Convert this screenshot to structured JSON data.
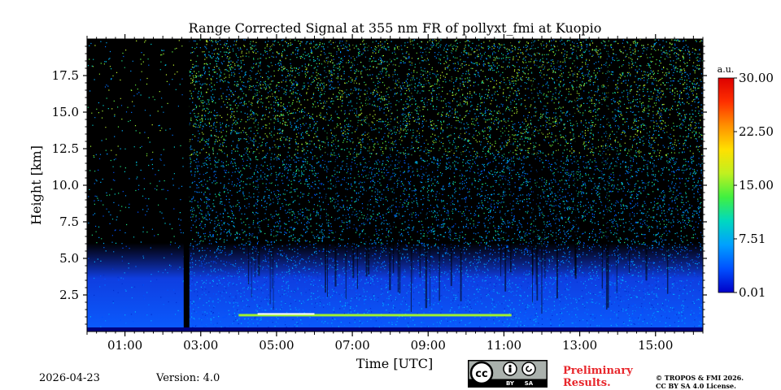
{
  "chart_data": {
    "type": "heatmap",
    "title": "Range Corrected Signal at 355 nm FR of pollyxt_fmi at Kuopio",
    "xlabel": "Time [UTC]",
    "ylabel": "Height [km]",
    "x_range_hours": [
      0.0,
      16.25
    ],
    "y_range_km": [
      0.0,
      20.0
    ],
    "xticks": [
      "01:00",
      "03:00",
      "05:00",
      "07:00",
      "09:00",
      "11:00",
      "13:00",
      "15:00"
    ],
    "xtick_values_hours": [
      1,
      3,
      5,
      7,
      9,
      11,
      13,
      15
    ],
    "yticks": [
      "2.5",
      "5.0",
      "7.5",
      "10.0",
      "12.5",
      "15.0",
      "17.5"
    ],
    "ytick_values_km": [
      2.5,
      5.0,
      7.5,
      10.0,
      12.5,
      15.0,
      17.5
    ],
    "colorbar": {
      "unit_label": "a.u.",
      "range": [
        0.01,
        30.0
      ],
      "ticks": [
        "0.01",
        "7.51",
        "15.00",
        "22.50",
        "30.00"
      ],
      "tick_values": [
        0.01,
        7.51,
        15.0,
        22.5,
        30.0
      ],
      "colors": [
        "#0000c8",
        "#0050ff",
        "#00a0ff",
        "#00d8c0",
        "#40f040",
        "#c0f020",
        "#ffe000",
        "#ff9000",
        "#ff3000",
        "#dd0000"
      ]
    },
    "features": {
      "background_color": "#000000",
      "boundary_layer_top_km": 3.2,
      "elevated_aerosol_top_km": 5.5,
      "data_gap_hours": [
        2.55,
        2.7
      ],
      "high_signal_layer": {
        "start_hour": 4.0,
        "end_hour": 11.2,
        "height_km": 1.2
      }
    }
  },
  "footer": {
    "date": "2026-04-23",
    "version": "Version: 4.0",
    "license_badge_text": [
      "cc",
      "BY",
      "SA"
    ],
    "preliminary": [
      "Preliminary",
      "Results."
    ],
    "copyright": [
      "© TROPOS & FMI 2026.",
      "CC BY SA 4.0 License."
    ]
  }
}
